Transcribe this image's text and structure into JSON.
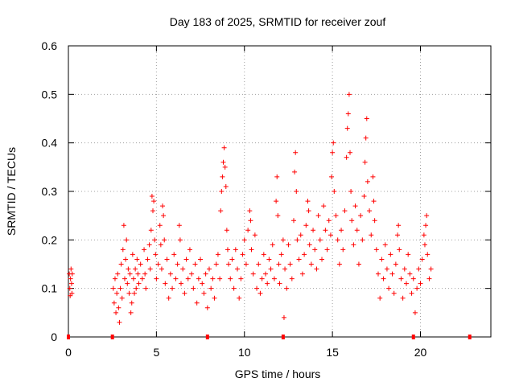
{
  "chart_data": {
    "type": "scatter",
    "title": "Day 183 of 2025, SRMTID for receiver zouf",
    "xlabel": "GPS time / hours",
    "ylabel": "SRMTID / TECUs",
    "xlim": [
      0,
      24
    ],
    "ylim": [
      0,
      0.6
    ],
    "xticks": [
      0,
      5,
      10,
      15,
      20
    ],
    "xtick_labels": [
      "0",
      "5",
      "10",
      "15",
      "20"
    ],
    "yticks": [
      0,
      0.1,
      0.2,
      0.3,
      0.4,
      0.5,
      0.6
    ],
    "ytick_labels": [
      "0",
      "0.1",
      "0.2",
      "0.3",
      "0.4",
      "0.5",
      "0.6"
    ],
    "grid": true,
    "marker": "+",
    "color": "#ff0000",
    "series": [
      {
        "name": "SRMTID",
        "points": [
          [
            0.05,
            0.13
          ],
          [
            0.08,
            0.1
          ],
          [
            0.1,
            0.085
          ],
          [
            0.12,
            0.12
          ],
          [
            0.15,
            0.14
          ],
          [
            0.18,
            0.11
          ],
          [
            0.2,
            0.09
          ],
          [
            0.22,
            0.13
          ],
          [
            2.55,
            0.1
          ],
          [
            2.6,
            0.07
          ],
          [
            2.65,
            0.12
          ],
          [
            2.7,
            0.05
          ],
          [
            2.75,
            0.09
          ],
          [
            2.8,
            0.13
          ],
          [
            2.85,
            0.06
          ],
          [
            2.9,
            0.03
          ],
          [
            2.95,
            0.1
          ],
          [
            3.0,
            0.15
          ],
          [
            3.05,
            0.08
          ],
          [
            3.1,
            0.18
          ],
          [
            3.15,
            0.23
          ],
          [
            3.2,
            0.12
          ],
          [
            3.25,
            0.16
          ],
          [
            3.3,
            0.2
          ],
          [
            3.35,
            0.11
          ],
          [
            3.4,
            0.14
          ],
          [
            3.45,
            0.09
          ],
          [
            3.5,
            0.13
          ],
          [
            3.55,
            0.05
          ],
          [
            3.6,
            0.07
          ],
          [
            3.65,
            0.17
          ],
          [
            3.7,
            0.12
          ],
          [
            3.75,
            0.09
          ],
          [
            3.8,
            0.14
          ],
          [
            3.85,
            0.1
          ],
          [
            3.9,
            0.16
          ],
          [
            3.95,
            0.13
          ],
          [
            4.0,
            0.11
          ],
          [
            4.1,
            0.15
          ],
          [
            4.2,
            0.12
          ],
          [
            4.3,
            0.18
          ],
          [
            4.35,
            0.13
          ],
          [
            4.4,
            0.1
          ],
          [
            4.5,
            0.16
          ],
          [
            4.6,
            0.19
          ],
          [
            4.65,
            0.14
          ],
          [
            4.7,
            0.22
          ],
          [
            4.75,
            0.29
          ],
          [
            4.8,
            0.26
          ],
          [
            4.85,
            0.28
          ],
          [
            4.9,
            0.2
          ],
          [
            4.95,
            0.17
          ],
          [
            5.0,
            0.12
          ],
          [
            5.1,
            0.15
          ],
          [
            5.2,
            0.23
          ],
          [
            5.25,
            0.19
          ],
          [
            5.3,
            0.14
          ],
          [
            5.35,
            0.27
          ],
          [
            5.4,
            0.25
          ],
          [
            5.45,
            0.2
          ],
          [
            5.5,
            0.11
          ],
          [
            5.6,
            0.16
          ],
          [
            5.7,
            0.08
          ],
          [
            5.8,
            0.13
          ],
          [
            5.9,
            0.1
          ],
          [
            6.0,
            0.17
          ],
          [
            6.1,
            0.12
          ],
          [
            6.2,
            0.15
          ],
          [
            6.3,
            0.23
          ],
          [
            6.35,
            0.2
          ],
          [
            6.4,
            0.11
          ],
          [
            6.5,
            0.14
          ],
          [
            6.6,
            0.09
          ],
          [
            6.7,
            0.16
          ],
          [
            6.8,
            0.12
          ],
          [
            6.9,
            0.18
          ],
          [
            7.0,
            0.13
          ],
          [
            7.1,
            0.1
          ],
          [
            7.2,
            0.15
          ],
          [
            7.3,
            0.07
          ],
          [
            7.4,
            0.12
          ],
          [
            7.5,
            0.16
          ],
          [
            7.6,
            0.11
          ],
          [
            7.7,
            0.09
          ],
          [
            7.8,
            0.13
          ],
          [
            7.9,
            0.06
          ],
          [
            8.0,
            0.14
          ],
          [
            8.1,
            0.1
          ],
          [
            8.2,
            0.12
          ],
          [
            8.3,
            0.08
          ],
          [
            8.4,
            0.15
          ],
          [
            8.5,
            0.17
          ],
          [
            8.6,
            0.12
          ],
          [
            8.65,
            0.26
          ],
          [
            8.7,
            0.3
          ],
          [
            8.75,
            0.33
          ],
          [
            8.8,
            0.36
          ],
          [
            8.85,
            0.39
          ],
          [
            8.9,
            0.35
          ],
          [
            8.95,
            0.31
          ],
          [
            9.0,
            0.22
          ],
          [
            9.05,
            0.18
          ],
          [
            9.1,
            0.15
          ],
          [
            9.2,
            0.12
          ],
          [
            9.3,
            0.16
          ],
          [
            9.4,
            0.1
          ],
          [
            9.5,
            0.18
          ],
          [
            9.6,
            0.14
          ],
          [
            9.7,
            0.08
          ],
          [
            9.8,
            0.12
          ],
          [
            9.9,
            0.17
          ],
          [
            10.0,
            0.2
          ],
          [
            10.1,
            0.15
          ],
          [
            10.2,
            0.22
          ],
          [
            10.3,
            0.26
          ],
          [
            10.35,
            0.24
          ],
          [
            10.4,
            0.18
          ],
          [
            10.5,
            0.13
          ],
          [
            10.6,
            0.21
          ],
          [
            10.7,
            0.1
          ],
          [
            10.8,
            0.15
          ],
          [
            10.9,
            0.09
          ],
          [
            11.0,
            0.12
          ],
          [
            11.1,
            0.17
          ],
          [
            11.2,
            0.13
          ],
          [
            11.3,
            0.11
          ],
          [
            11.4,
            0.16
          ],
          [
            11.5,
            0.14
          ],
          [
            11.6,
            0.19
          ],
          [
            11.7,
            0.12
          ],
          [
            11.8,
            0.28
          ],
          [
            11.85,
            0.33
          ],
          [
            11.9,
            0.25
          ],
          [
            11.95,
            0.15
          ],
          [
            12.0,
            0.11
          ],
          [
            12.1,
            0.17
          ],
          [
            12.2,
            0.2
          ],
          [
            12.25,
            0.04
          ],
          [
            12.3,
            0.14
          ],
          [
            12.4,
            0.1
          ],
          [
            12.5,
            0.19
          ],
          [
            12.6,
            0.15
          ],
          [
            12.7,
            0.12
          ],
          [
            12.8,
            0.24
          ],
          [
            12.85,
            0.34
          ],
          [
            12.9,
            0.38
          ],
          [
            12.95,
            0.3
          ],
          [
            13.0,
            0.2
          ],
          [
            13.1,
            0.16
          ],
          [
            13.2,
            0.21
          ],
          [
            13.3,
            0.13
          ],
          [
            13.4,
            0.17
          ],
          [
            13.5,
            0.23
          ],
          [
            13.6,
            0.28
          ],
          [
            13.65,
            0.26
          ],
          [
            13.7,
            0.19
          ],
          [
            13.8,
            0.15
          ],
          [
            13.9,
            0.22
          ],
          [
            14.0,
            0.18
          ],
          [
            14.1,
            0.14
          ],
          [
            14.2,
            0.25
          ],
          [
            14.3,
            0.2
          ],
          [
            14.4,
            0.16
          ],
          [
            14.5,
            0.27
          ],
          [
            14.6,
            0.22
          ],
          [
            14.7,
            0.18
          ],
          [
            14.8,
            0.24
          ],
          [
            14.9,
            0.21
          ],
          [
            14.95,
            0.33
          ],
          [
            15.0,
            0.38
          ],
          [
            15.05,
            0.4
          ],
          [
            15.1,
            0.3
          ],
          [
            15.2,
            0.25
          ],
          [
            15.3,
            0.2
          ],
          [
            15.4,
            0.15
          ],
          [
            15.5,
            0.22
          ],
          [
            15.6,
            0.18
          ],
          [
            15.7,
            0.26
          ],
          [
            15.8,
            0.37
          ],
          [
            15.85,
            0.43
          ],
          [
            15.9,
            0.46
          ],
          [
            15.95,
            0.5
          ],
          [
            16.0,
            0.38
          ],
          [
            16.05,
            0.3
          ],
          [
            16.1,
            0.24
          ],
          [
            16.2,
            0.19
          ],
          [
            16.3,
            0.27
          ],
          [
            16.4,
            0.22
          ],
          [
            16.5,
            0.15
          ],
          [
            16.6,
            0.25
          ],
          [
            16.7,
            0.2
          ],
          [
            16.8,
            0.29
          ],
          [
            16.85,
            0.36
          ],
          [
            16.9,
            0.41
          ],
          [
            16.95,
            0.45
          ],
          [
            17.0,
            0.32
          ],
          [
            17.1,
            0.26
          ],
          [
            17.2,
            0.21
          ],
          [
            17.3,
            0.33
          ],
          [
            17.35,
            0.28
          ],
          [
            17.4,
            0.24
          ],
          [
            17.5,
            0.18
          ],
          [
            17.6,
            0.13
          ],
          [
            17.7,
            0.08
          ],
          [
            17.8,
            0.16
          ],
          [
            17.9,
            0.12
          ],
          [
            18.0,
            0.19
          ],
          [
            18.1,
            0.14
          ],
          [
            18.2,
            0.1
          ],
          [
            18.3,
            0.17
          ],
          [
            18.4,
            0.13
          ],
          [
            18.5,
            0.09
          ],
          [
            18.6,
            0.15
          ],
          [
            18.7,
            0.21
          ],
          [
            18.75,
            0.23
          ],
          [
            18.8,
            0.18
          ],
          [
            18.9,
            0.12
          ],
          [
            19.0,
            0.08
          ],
          [
            19.1,
            0.14
          ],
          [
            19.2,
            0.11
          ],
          [
            19.3,
            0.17
          ],
          [
            19.4,
            0.13
          ],
          [
            19.5,
            0.09
          ],
          [
            19.6,
            0.12
          ],
          [
            19.7,
            0.05
          ],
          [
            19.8,
            0.1
          ],
          [
            19.9,
            0.14
          ],
          [
            20.0,
            0.11
          ],
          [
            20.1,
            0.16
          ],
          [
            20.2,
            0.21
          ],
          [
            20.25,
            0.19
          ],
          [
            20.3,
            0.23
          ],
          [
            20.35,
            0.25
          ],
          [
            20.4,
            0.17
          ],
          [
            20.5,
            0.12
          ],
          [
            20.6,
            0.14
          ]
        ]
      }
    ],
    "baseline_markers_x": [
      0.0,
      2.5,
      7.9,
      12.2,
      19.6,
      22.8
    ]
  }
}
